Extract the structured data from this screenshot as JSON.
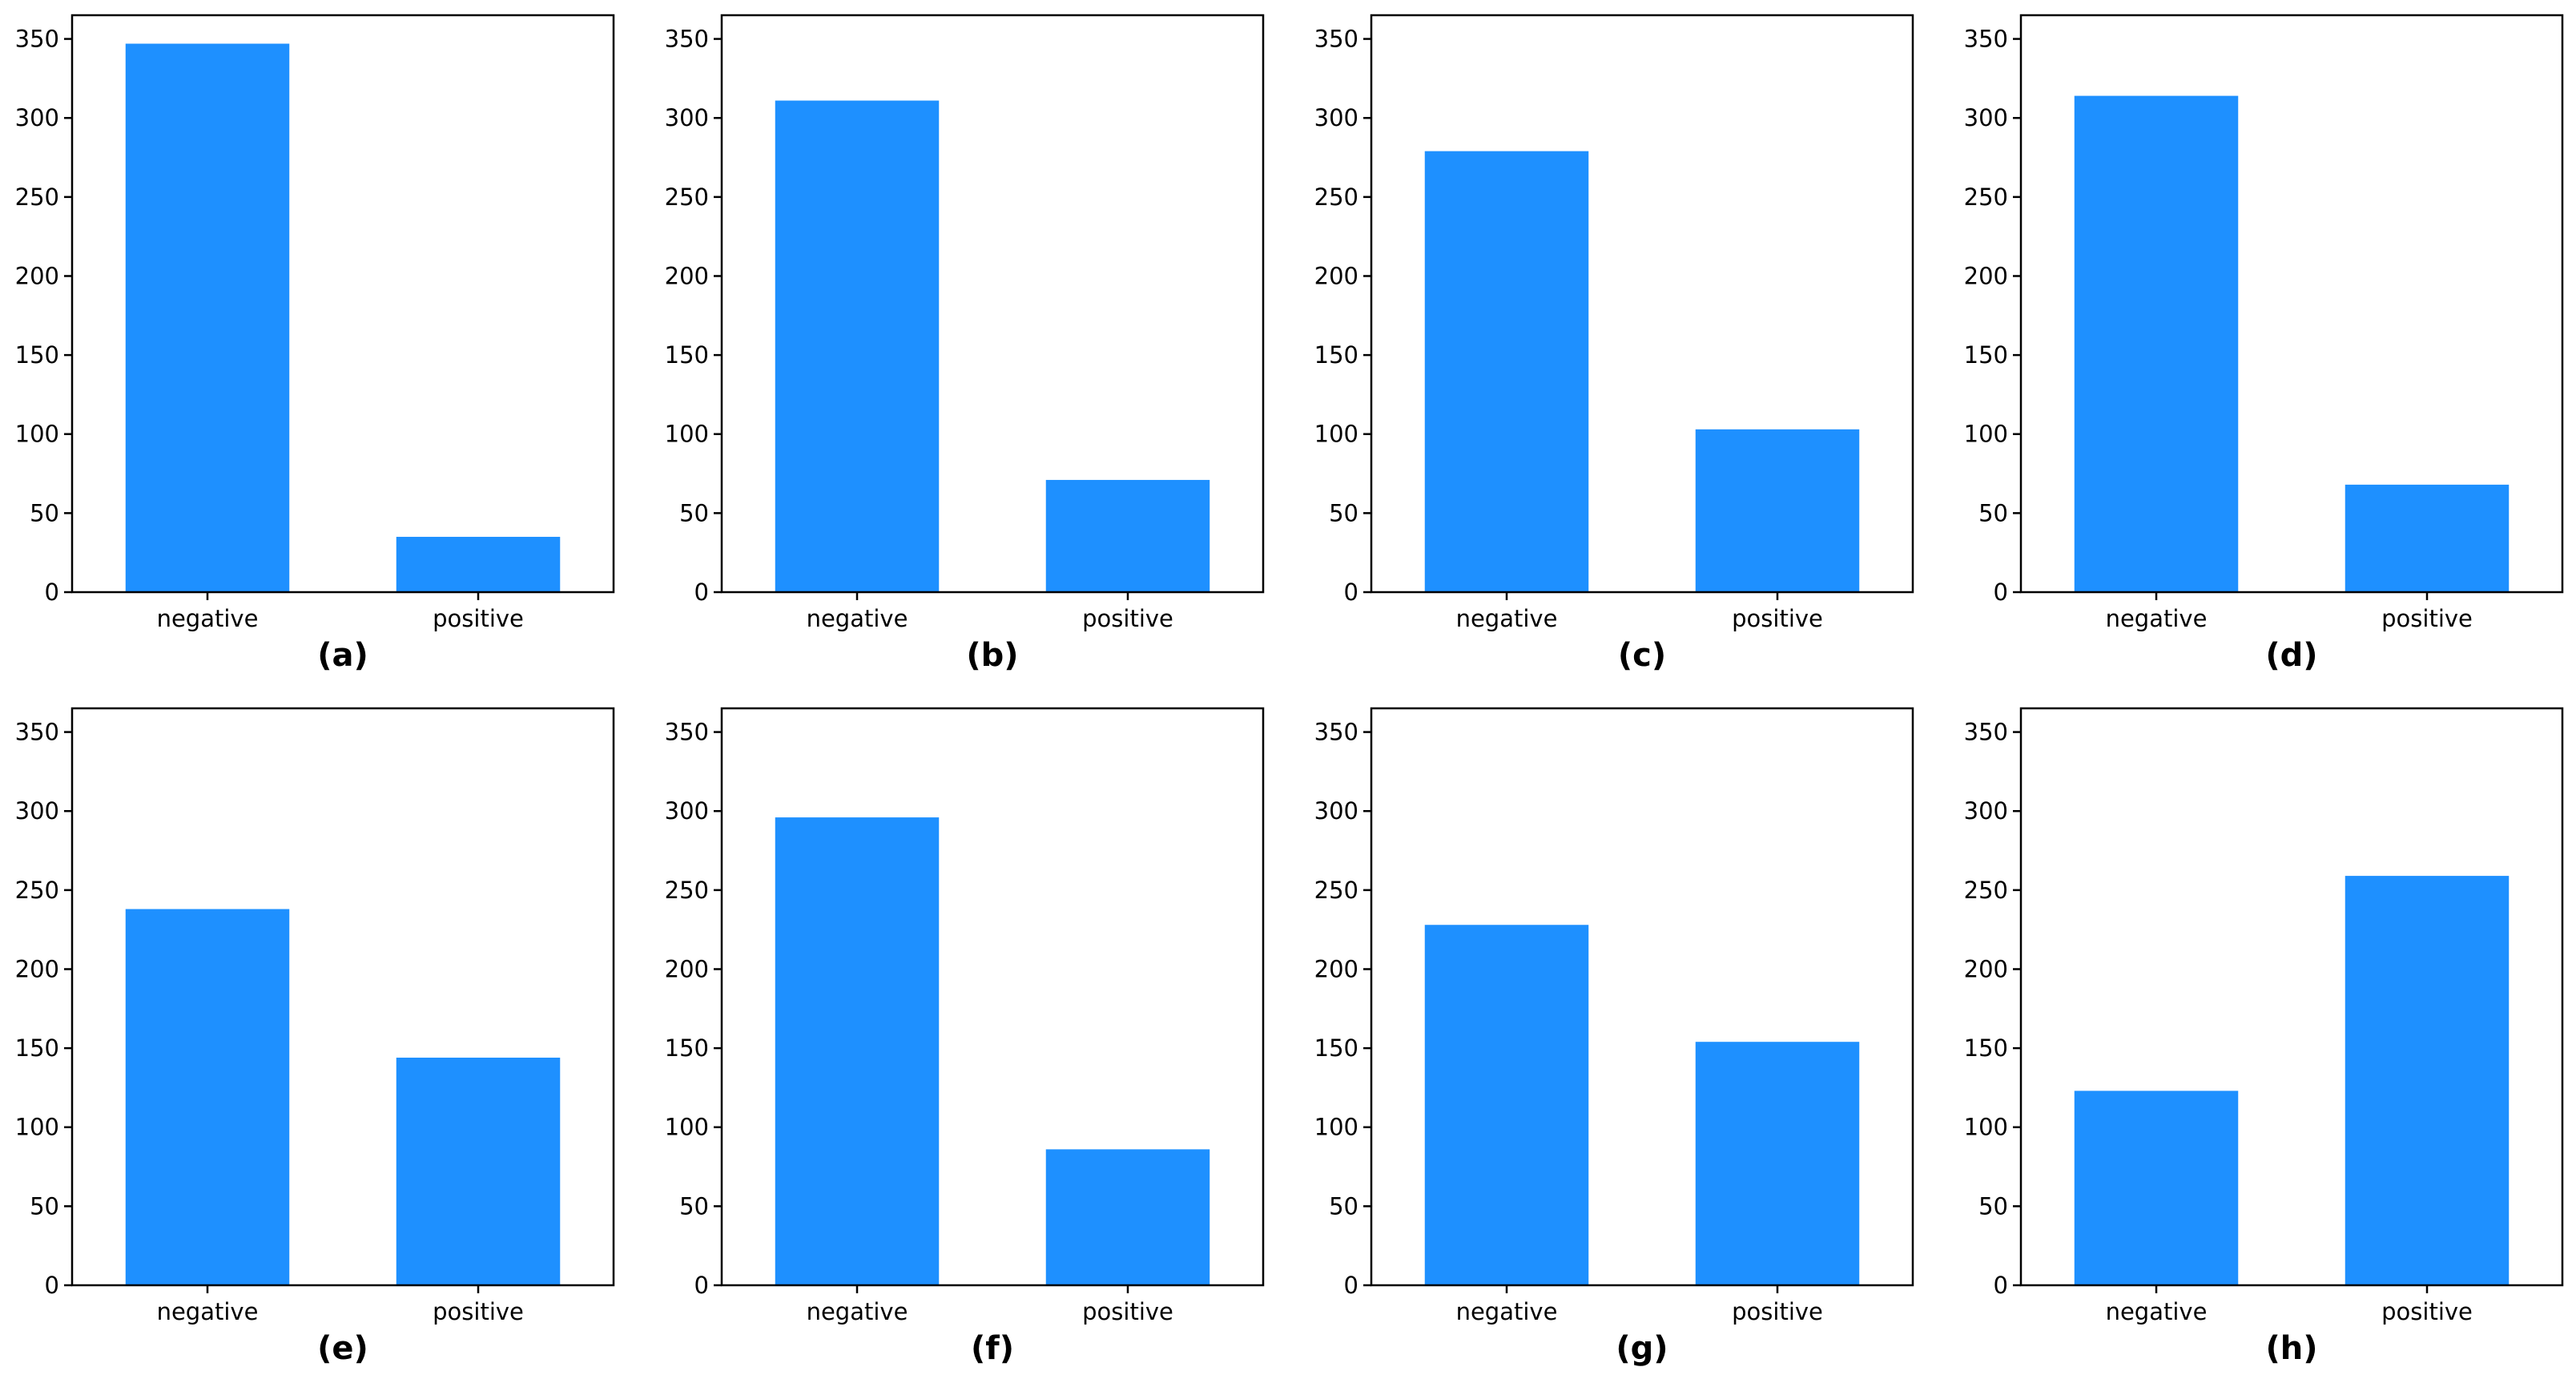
{
  "bar_color": "#1e90ff",
  "axis_color": "#000000",
  "chart_data": [
    {
      "type": "bar",
      "panel_label": "(a)",
      "categories": [
        "negative",
        "positive"
      ],
      "values": [
        347,
        35
      ],
      "ylim": [
        0,
        365
      ],
      "yticks": [
        0,
        50,
        100,
        150,
        200,
        250,
        300,
        350
      ],
      "grid": false
    },
    {
      "type": "bar",
      "panel_label": "(b)",
      "categories": [
        "negative",
        "positive"
      ],
      "values": [
        311,
        71
      ],
      "ylim": [
        0,
        365
      ],
      "yticks": [
        0,
        50,
        100,
        150,
        200,
        250,
        300,
        350
      ],
      "grid": false
    },
    {
      "type": "bar",
      "panel_label": "(c)",
      "categories": [
        "negative",
        "positive"
      ],
      "values": [
        279,
        103
      ],
      "ylim": [
        0,
        365
      ],
      "yticks": [
        0,
        50,
        100,
        150,
        200,
        250,
        300,
        350
      ],
      "grid": false
    },
    {
      "type": "bar",
      "panel_label": "(d)",
      "categories": [
        "negative",
        "positive"
      ],
      "values": [
        314,
        68
      ],
      "ylim": [
        0,
        365
      ],
      "yticks": [
        0,
        50,
        100,
        150,
        200,
        250,
        300,
        350
      ],
      "grid": false
    },
    {
      "type": "bar",
      "panel_label": "(e)",
      "categories": [
        "negative",
        "positive"
      ],
      "values": [
        238,
        144
      ],
      "ylim": [
        0,
        365
      ],
      "yticks": [
        0,
        50,
        100,
        150,
        200,
        250,
        300,
        350
      ],
      "grid": false
    },
    {
      "type": "bar",
      "panel_label": "(f)",
      "categories": [
        "negative",
        "positive"
      ],
      "values": [
        296,
        86
      ],
      "ylim": [
        0,
        365
      ],
      "yticks": [
        0,
        50,
        100,
        150,
        200,
        250,
        300,
        350
      ],
      "grid": false
    },
    {
      "type": "bar",
      "panel_label": "(g)",
      "categories": [
        "negative",
        "positive"
      ],
      "values": [
        228,
        154
      ],
      "ylim": [
        0,
        365
      ],
      "yticks": [
        0,
        50,
        100,
        150,
        200,
        250,
        300,
        350
      ],
      "grid": false
    },
    {
      "type": "bar",
      "panel_label": "(h)",
      "categories": [
        "negative",
        "positive"
      ],
      "values": [
        123,
        259
      ],
      "ylim": [
        0,
        365
      ],
      "yticks": [
        0,
        50,
        100,
        150,
        200,
        250,
        300,
        350
      ],
      "grid": false
    }
  ]
}
